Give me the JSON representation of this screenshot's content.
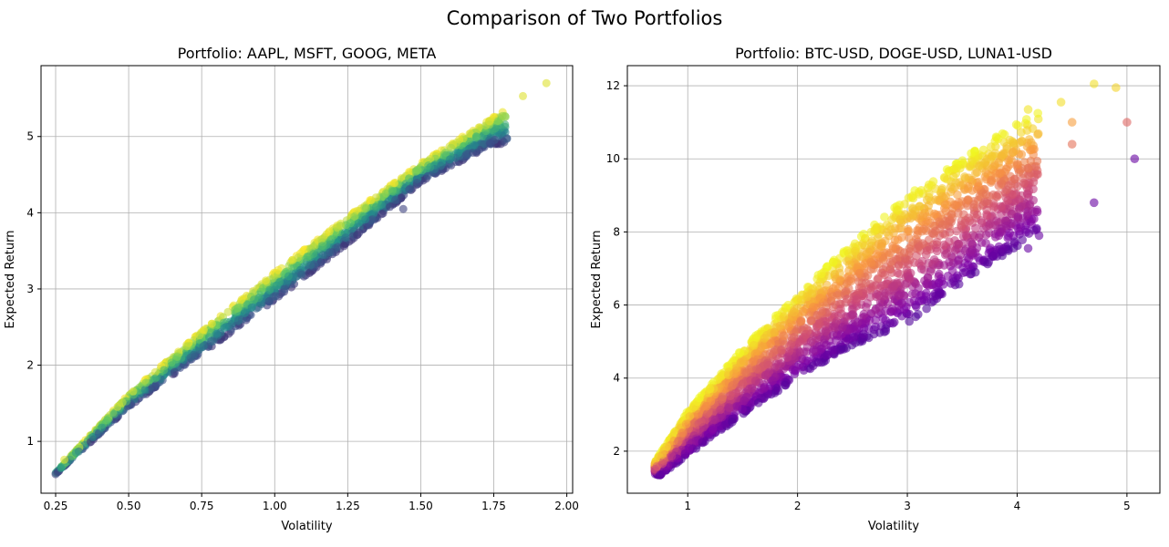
{
  "figure": {
    "suptitle": "Comparison of Two Portfolios"
  },
  "chart_data": [
    {
      "type": "scatter",
      "title": "Portfolio: AAPL, MSFT, GOOG, META",
      "xlabel": "Volatility",
      "ylabel": "Expected Return",
      "xlim": [
        0.2,
        2.02
      ],
      "ylim": [
        0.32,
        5.93
      ],
      "xticks": [
        0.25,
        0.5,
        0.75,
        1.0,
        1.25,
        1.5,
        1.75,
        2.0
      ],
      "xtick_labels": [
        "0.25",
        "0.50",
        "0.75",
        "1.00",
        "1.25",
        "1.50",
        "1.75",
        "2.00"
      ],
      "yticks": [
        1,
        2,
        3,
        4,
        5
      ],
      "ytick_labels": [
        "1",
        "2",
        "3",
        "4",
        "5"
      ],
      "grid": true,
      "colormap": "viridis",
      "colors": [
        "#440154",
        "#3b528b",
        "#21918c",
        "#5ec962",
        "#fde725"
      ],
      "alpha": 0.6,
      "band": {
        "lower": [
          [
            0.25,
            0.57
          ],
          [
            0.5,
            1.45
          ],
          [
            0.75,
            2.15
          ],
          [
            1.0,
            2.85
          ],
          [
            1.25,
            3.6
          ],
          [
            1.5,
            4.4
          ],
          [
            1.75,
            4.9
          ]
        ],
        "upper": [
          [
            0.25,
            0.6
          ],
          [
            0.5,
            1.62
          ],
          [
            0.75,
            2.45
          ],
          [
            1.0,
            3.22
          ],
          [
            1.25,
            3.95
          ],
          [
            1.5,
            4.65
          ],
          [
            1.93,
            5.7
          ]
        ]
      },
      "points": [
        {
          "x": 0.25,
          "y": 0.57
        },
        {
          "x": 0.27,
          "y": 0.66
        },
        {
          "x": 0.28,
          "y": 0.76
        },
        {
          "x": 0.32,
          "y": 0.85
        },
        {
          "x": 1.74,
          "y": 4.9
        },
        {
          "x": 1.78,
          "y": 5.27
        },
        {
          "x": 1.85,
          "y": 5.53
        },
        {
          "x": 1.93,
          "y": 5.7
        },
        {
          "x": 1.44,
          "y": 4.05
        },
        {
          "x": 1.46,
          "y": 4.45
        },
        {
          "x": 1.6,
          "y": 4.7
        },
        {
          "x": 1.69,
          "y": 5.0
        }
      ]
    },
    {
      "type": "scatter",
      "title": "Portfolio: BTC-USD, DOGE-USD, LUNA1-USD",
      "xlabel": "Volatility",
      "ylabel": "Expected Return",
      "xlim": [
        0.45,
        5.3
      ],
      "ylim": [
        0.85,
        12.55
      ],
      "xticks": [
        1,
        2,
        3,
        4,
        5
      ],
      "xtick_labels": [
        "1",
        "2",
        "3",
        "4",
        "5"
      ],
      "yticks": [
        2,
        4,
        6,
        8,
        10,
        12
      ],
      "ytick_labels": [
        "2",
        "4",
        "6",
        "8",
        "10",
        "12"
      ],
      "grid": true,
      "colormap": "plasma",
      "colors": [
        "#0d0887",
        "#7e03a8",
        "#cc4778",
        "#f89540",
        "#f0f921"
      ],
      "alpha": 0.6,
      "band": {
        "lower": [
          [
            0.75,
            1.35
          ],
          [
            1.5,
            3.0
          ],
          [
            2.0,
            4.0
          ],
          [
            2.5,
            4.9
          ],
          [
            3.0,
            5.5
          ],
          [
            3.5,
            6.6
          ],
          [
            4.0,
            7.6
          ],
          [
            4.7,
            8.8
          ],
          [
            5.07,
            10.0
          ]
        ],
        "upper": [
          [
            0.7,
            1.7
          ],
          [
            1.0,
            3.1
          ],
          [
            1.5,
            4.8
          ],
          [
            2.0,
            6.3
          ],
          [
            2.5,
            7.7
          ],
          [
            3.0,
            9.0
          ],
          [
            3.5,
            10.0
          ],
          [
            4.0,
            11.0
          ],
          [
            4.7,
            12.1
          ]
        ]
      },
      "points": [
        {
          "x": 0.75,
          "y": 1.35
        },
        {
          "x": 4.7,
          "y": 12.05
        },
        {
          "x": 4.9,
          "y": 11.95
        },
        {
          "x": 5.0,
          "y": 11.0
        },
        {
          "x": 5.07,
          "y": 10.0
        },
        {
          "x": 4.7,
          "y": 8.8
        },
        {
          "x": 4.1,
          "y": 7.55
        },
        {
          "x": 4.4,
          "y": 11.55
        },
        {
          "x": 4.5,
          "y": 10.4
        },
        {
          "x": 4.1,
          "y": 11.35
        },
        {
          "x": 4.5,
          "y": 11.0
        },
        {
          "x": 4.2,
          "y": 7.9
        }
      ]
    }
  ]
}
